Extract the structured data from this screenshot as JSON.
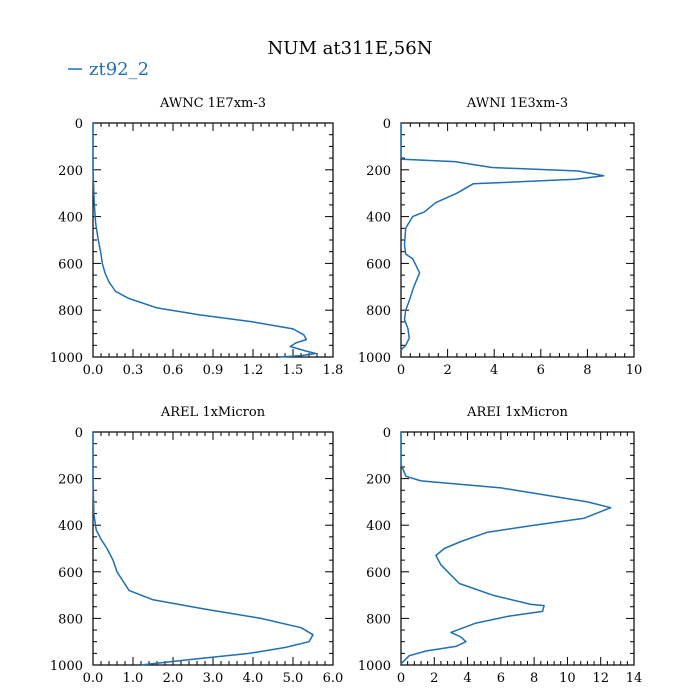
{
  "figure": {
    "title": "NUM at311E,56N",
    "legend": {
      "label": "zt92_2",
      "color": "#1f6fb2"
    }
  },
  "chart_data": [
    {
      "type": "line",
      "title": "AWNC  1E7xm-3",
      "xlabel": "",
      "ylabel": "",
      "xlim": [
        0,
        1.8
      ],
      "ylim": [
        1000,
        0
      ],
      "xticks": [
        0,
        0.3,
        0.6,
        0.9,
        1.2,
        1.5,
        1.8
      ],
      "xtick_labels": [
        "0.0",
        "0.3",
        "0.6",
        "0.9",
        "1.2",
        "1.5",
        "1.8"
      ],
      "yticks": [
        0,
        200,
        400,
        600,
        800,
        1000
      ],
      "ytick_labels": [
        "0",
        "200",
        "400",
        "600",
        "800",
        "1000"
      ],
      "series": [
        {
          "name": "zt92_2",
          "color": "#1f6fb2",
          "x": [
            0,
            0,
            0.01,
            0.02,
            0.04,
            0.06,
            0.07,
            0.09,
            0.12,
            0.17,
            0.27,
            0.48,
            0.8,
            1.2,
            1.5,
            1.58,
            1.6,
            1.52,
            1.48,
            1.6,
            1.67,
            1.55,
            1.4
          ],
          "y": [
            0,
            200,
            350,
            430,
            500,
            560,
            600,
            640,
            680,
            720,
            750,
            790,
            820,
            850,
            880,
            905,
            925,
            940,
            955,
            975,
            985,
            995,
            1000
          ]
        }
      ]
    },
    {
      "type": "line",
      "title": "AWNI  1E3xm-3",
      "xlabel": "",
      "ylabel": "",
      "xlim": [
        0,
        10
      ],
      "ylim": [
        1000,
        0
      ],
      "xticks": [
        0,
        2,
        4,
        6,
        8,
        10
      ],
      "xtick_labels": [
        "0",
        "2",
        "4",
        "6",
        "8",
        "10"
      ],
      "yticks": [
        0,
        200,
        400,
        600,
        800,
        1000
      ],
      "ytick_labels": [
        "0",
        "200",
        "400",
        "600",
        "800",
        "1000"
      ],
      "series": [
        {
          "name": "zt92_2",
          "color": "#1f6fb2",
          "x": [
            0,
            0,
            0.05,
            2.3,
            3.9,
            7.6,
            8.7,
            7.5,
            3.1,
            2.4,
            1.5,
            1.0,
            0.5,
            0.2,
            0.15,
            0.2,
            0.5,
            0.6,
            0.8,
            0.55,
            0.35,
            0.2,
            0.15,
            0.3,
            0.35,
            0.2,
            0
          ],
          "y": [
            0,
            140,
            155,
            165,
            190,
            205,
            225,
            240,
            260,
            300,
            340,
            380,
            400,
            450,
            520,
            560,
            580,
            600,
            640,
            700,
            760,
            800,
            840,
            880,
            920,
            950,
            970
          ]
        }
      ]
    },
    {
      "type": "line",
      "title": "AREL  1xMicron",
      "xlabel": "",
      "ylabel": "",
      "xlim": [
        0,
        6
      ],
      "ylim": [
        1000,
        0
      ],
      "xticks": [
        0,
        1,
        2,
        3,
        4,
        5,
        6
      ],
      "xtick_labels": [
        "0.0",
        "1.0",
        "2.0",
        "3.0",
        "4.0",
        "5.0",
        "6.0"
      ],
      "yticks": [
        0,
        200,
        400,
        600,
        800,
        1000
      ],
      "ytick_labels": [
        "0",
        "200",
        "400",
        "600",
        "800",
        "1000"
      ],
      "series": [
        {
          "name": "zt92_2",
          "color": "#1f6fb2",
          "x": [
            0,
            0,
            0.02,
            0.08,
            0.2,
            0.35,
            0.5,
            0.6,
            0.75,
            0.9,
            1.5,
            2.8,
            4.2,
            5.2,
            5.5,
            5.4,
            4.8,
            3.9,
            2.5,
            1.2
          ],
          "y": [
            0,
            200,
            350,
            420,
            460,
            500,
            550,
            600,
            640,
            680,
            720,
            760,
            800,
            840,
            870,
            900,
            925,
            950,
            975,
            1000
          ]
        }
      ]
    },
    {
      "type": "line",
      "title": "AREI  1xMicron",
      "xlabel": "",
      "ylabel": "",
      "xlim": [
        0,
        14
      ],
      "ylim": [
        1000,
        0
      ],
      "xticks": [
        0,
        2,
        4,
        6,
        8,
        10,
        12,
        14
      ],
      "xtick_labels": [
        "0",
        "2",
        "4",
        "6",
        "8",
        "10",
        "12",
        "14"
      ],
      "yticks": [
        0,
        200,
        400,
        600,
        800,
        1000
      ],
      "ytick_labels": [
        "0",
        "200",
        "400",
        "600",
        "800",
        "1000"
      ],
      "series": [
        {
          "name": "zt92_2",
          "color": "#1f6fb2",
          "x": [
            0,
            0,
            0.3,
            1.2,
            6,
            11.2,
            12.6,
            11,
            8,
            5.2,
            3.6,
            2.6,
            2.1,
            2.4,
            3.5,
            5.5,
            7.8,
            8.6,
            8.5,
            6.5,
            4.5,
            3.0,
            3.6,
            3.9,
            3.3,
            1.5,
            0.5,
            0
          ],
          "y": [
            0,
            140,
            190,
            210,
            240,
            300,
            325,
            370,
            400,
            430,
            470,
            500,
            530,
            570,
            650,
            700,
            740,
            745,
            770,
            790,
            820,
            860,
            880,
            900,
            920,
            940,
            960,
            995
          ]
        }
      ]
    }
  ]
}
